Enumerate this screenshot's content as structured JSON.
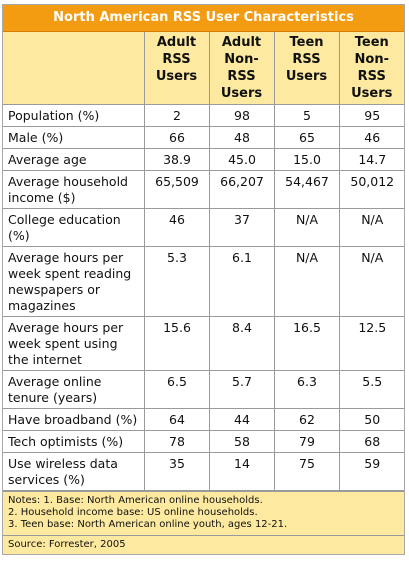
{
  "title": "North American RSS User Characteristics",
  "columns": [
    [
      "Adult",
      "RSS",
      "Users"
    ],
    [
      "Adult",
      "Non-",
      "RSS",
      "Users"
    ],
    [
      "Teen",
      "RSS",
      "Users"
    ],
    [
      "Teen",
      "Non-",
      "RSS",
      "Users"
    ]
  ],
  "rows": [
    {
      "label": "Population (%)",
      "values": [
        "2",
        "98",
        "5",
        "95"
      ]
    },
    {
      "label": "Male (%)",
      "values": [
        "66",
        "48",
        "65",
        "46"
      ]
    },
    {
      "label": "Average age",
      "values": [
        "38.9",
        "45.0",
        "15.0",
        "14.7"
      ]
    },
    {
      "label": "Average household income ($)",
      "values": [
        "65,509",
        "66,207",
        "54,467",
        "50,012"
      ]
    },
    {
      "label": "College education (%)",
      "values": [
        "46",
        "37",
        "N/A",
        "N/A"
      ]
    },
    {
      "label": "Average hours per week spent reading newspapers or magazines",
      "values": [
        "5.3",
        "6.1",
        "N/A",
        "N/A"
      ]
    },
    {
      "label": "Average hours per week spent using the internet",
      "values": [
        "15.6",
        "8.4",
        "16.5",
        "12.5"
      ]
    },
    {
      "label": "Average online tenure (years)",
      "values": [
        "6.5",
        "5.7",
        "6.3",
        "5.5"
      ]
    },
    {
      "label": "Have broadband (%)",
      "values": [
        "64",
        "44",
        "62",
        "50"
      ]
    },
    {
      "label": "Tech optimists (%)",
      "values": [
        "78",
        "58",
        "79",
        "68"
      ]
    },
    {
      "label": "Use wireless data services (%)",
      "values": [
        "35",
        "14",
        "75",
        "59"
      ]
    }
  ],
  "notes": [
    "Notes: 1. Base: North American online households.",
    "2. Household income base: US online households.",
    "3. Teen base: North American online youth, ages 12-21."
  ],
  "source": "Source: Forrester, 2005",
  "colors": {
    "title_bg": "#f39c12",
    "header_bg": "#fdeaa0",
    "border": "#9a9a9a"
  }
}
